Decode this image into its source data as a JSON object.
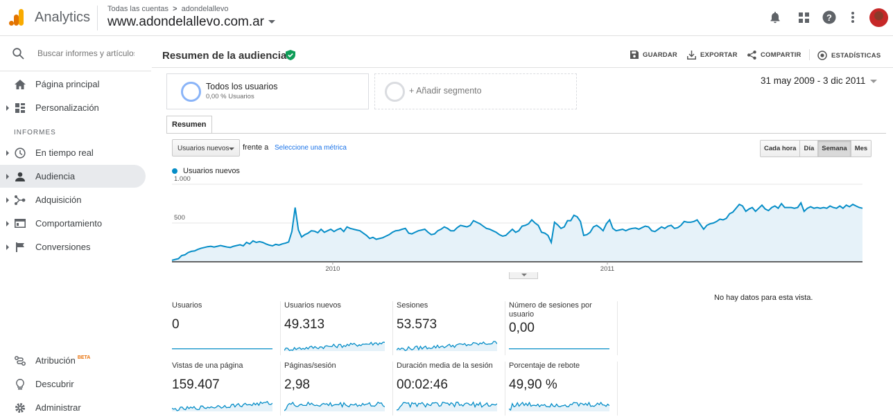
{
  "app": {
    "name": "Analytics"
  },
  "breadcrumb": {
    "root": "Todas las cuentas",
    "separator": ">",
    "account": "adondelallevo"
  },
  "property": {
    "name": "www.adondelallevo.com.ar"
  },
  "search": {
    "placeholder": "Buscar informes y artículos de ayuda"
  },
  "sidebar": {
    "home": "Página principal",
    "custom": "Personalización",
    "section": "INFORMES",
    "realtime": "En tiempo real",
    "audience": "Audiencia",
    "acquisition": "Adquisición",
    "behavior": "Comportamiento",
    "conversions": "Conversiones",
    "attribution": "Atribución",
    "attribution_badge": "BETA",
    "discover": "Descubrir",
    "admin": "Administrar"
  },
  "page": {
    "title": "Resumen de la audiencia"
  },
  "actions": {
    "save": "GUARDAR",
    "export": "EXPORTAR",
    "share": "COMPARTIR",
    "insights": "ESTADÍSTICAS"
  },
  "segments": {
    "all_users": "Todos los usuarios",
    "all_users_sub": "0,00 % Usuarios",
    "add": "+ Añadir segmento"
  },
  "date_range": "31 may 2009 - 3 dic 2011",
  "tabs": {
    "overview": "Resumen"
  },
  "metric_picker": {
    "selected": "Usuarios nuevos",
    "versus": "frente a",
    "select_metric": "Seleccione una métrica"
  },
  "granularity": {
    "hour": "Cada hora",
    "day": "Día",
    "week": "Semana",
    "month": "Mes",
    "selected": "Semana"
  },
  "colors": {
    "accent": "#058dc7",
    "fill": "#e6f2f9",
    "verified": "#0f9d58"
  },
  "chart_data": {
    "type": "area",
    "series": [
      {
        "name": "Usuarios nuevos",
        "values": [
          20,
          30,
          40,
          80,
          90,
          120,
          135,
          140,
          160,
          175,
          185,
          195,
          200,
          190,
          200,
          210,
          200,
          190,
          185,
          200,
          210,
          220,
          205,
          250,
          230,
          270,
          250,
          260,
          250,
          230,
          215,
          205,
          225,
          215,
          230,
          240,
          255,
          390,
          700,
          410,
          320,
          350,
          370,
          400,
          395,
          375,
          420,
          380,
          400,
          420,
          390,
          415,
          430,
          390,
          450,
          430,
          420,
          410,
          400,
          370,
          340,
          300,
          315,
          290,
          300,
          310,
          330,
          350,
          380,
          400,
          405,
          420,
          430,
          370,
          360,
          380,
          400,
          410,
          420,
          380,
          350,
          360,
          400,
          420,
          450,
          430,
          400,
          400,
          440,
          470,
          460,
          450,
          470,
          530,
          510,
          490,
          460,
          430,
          420,
          400,
          380,
          350,
          330,
          340,
          380,
          420,
          380,
          400,
          460,
          470,
          490,
          540,
          500,
          470,
          380,
          370,
          340,
          250,
          510,
          475,
          430,
          450,
          530,
          530,
          600,
          580,
          520,
          340,
          350,
          380,
          450,
          470,
          440,
          400,
          490,
          540,
          430,
          400,
          410,
          420,
          400,
          420,
          430,
          435,
          420,
          440,
          460,
          450,
          400,
          390,
          420,
          450,
          430,
          460,
          470,
          430,
          440,
          470,
          520,
          510,
          510,
          520,
          540,
          480,
          420,
          470,
          490,
          500,
          520,
          550,
          540,
          560,
          620,
          640,
          690,
          740,
          720,
          650,
          680,
          700,
          650,
          690,
          730,
          680,
          660,
          700,
          720,
          690,
          750,
          700,
          700,
          700,
          690,
          700,
          760,
          650,
          690,
          710,
          690,
          700,
          690,
          700,
          690,
          720,
          700,
          690,
          720,
          690,
          730,
          710,
          740,
          720,
          700,
          690
        ]
      }
    ],
    "ylim": [
      0,
      1000
    ],
    "yticks": [
      "1.000",
      "500"
    ],
    "xticks": [
      "2010",
      "2011"
    ],
    "grid": true
  },
  "no_data": "No hay datos para esta vista.",
  "metrics": [
    {
      "label": "Usuarios",
      "value": "0",
      "spark": "flat"
    },
    {
      "label": "Usuarios nuevos",
      "value": "49.313",
      "spark": "rising"
    },
    {
      "label": "Sesiones",
      "value": "53.573",
      "spark": "rising"
    },
    {
      "label": "Número de sesiones por usuario",
      "value": "0,00",
      "spark": "flat"
    },
    {
      "label": "Vistas de una página",
      "value": "159.407",
      "spark": "rising"
    },
    {
      "label": "Páginas/sesión",
      "value": "2,98",
      "spark": "noisy"
    },
    {
      "label": "Duración media de la sesión",
      "value": "00:02:46",
      "spark": "noisy"
    },
    {
      "label": "Porcentaje de rebote",
      "value": "49,90 %",
      "spark": "noisy"
    }
  ]
}
